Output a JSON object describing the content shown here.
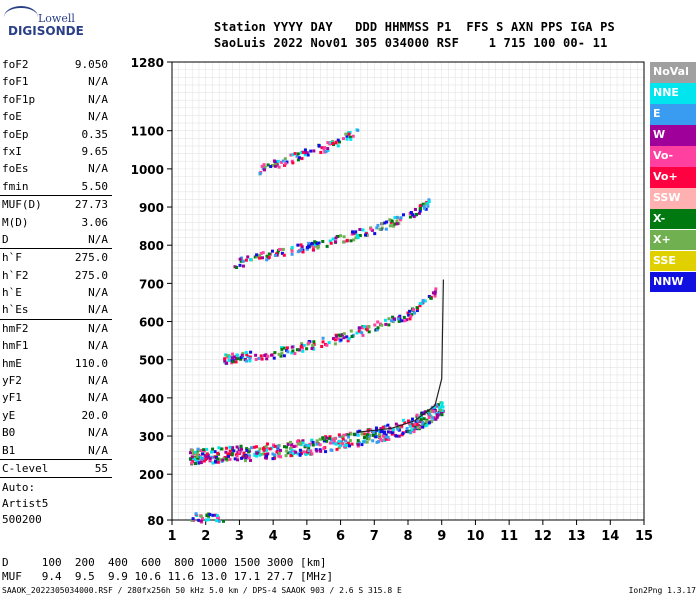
{
  "logo": {
    "top": "Lowell",
    "bottom": "DIGISONDE"
  },
  "header": {
    "line1": "Station YYYY DAY   DDD HHMMSS P1  FFS S AXN PPS IGA PS",
    "line2": "SaoLuis 2022 Nov01 305 034000 RSF    1 715 100 00- 11"
  },
  "params": [
    {
      "name": "foF2",
      "value": "9.050"
    },
    {
      "name": "foF1",
      "value": "N/A"
    },
    {
      "name": "foF1p",
      "value": "N/A"
    },
    {
      "name": "foE",
      "value": "N/A"
    },
    {
      "name": "foEp",
      "value": "0.35"
    },
    {
      "name": "fxI",
      "value": "9.65"
    },
    {
      "name": "foEs",
      "value": "N/A"
    },
    {
      "name": "fmin",
      "value": "5.50"
    },
    {
      "name": "MUF(D)",
      "value": "27.73"
    },
    {
      "name": "M(D)",
      "value": "3.06"
    },
    {
      "name": "D",
      "value": "N/A"
    },
    {
      "name": "h`F",
      "value": "275.0"
    },
    {
      "name": "h`F2",
      "value": "275.0"
    },
    {
      "name": "h`E",
      "value": "N/A"
    },
    {
      "name": "h`Es",
      "value": "N/A"
    },
    {
      "name": "hmF2",
      "value": "N/A"
    },
    {
      "name": "hmF1",
      "value": "N/A"
    },
    {
      "name": "hmE",
      "value": "110.0"
    },
    {
      "name": "yF2",
      "value": "N/A"
    },
    {
      "name": "yF1",
      "value": "N/A"
    },
    {
      "name": "yE",
      "value": "20.0"
    },
    {
      "name": "B0",
      "value": "N/A"
    },
    {
      "name": "B1",
      "value": "N/A"
    },
    {
      "name": "C-level",
      "value": "55"
    }
  ],
  "autoscale": {
    "line1": "Auto:",
    "line2": "Artist5",
    "line3": "500200"
  },
  "legend": [
    {
      "label": "NoVal",
      "color": "#a0a0a0"
    },
    {
      "label": "NNE",
      "color": "#00e5ee"
    },
    {
      "label": "E",
      "color": "#3a9cf0"
    },
    {
      "label": "W",
      "color": "#a0009a"
    },
    {
      "label": "Vo-",
      "color": "#ff40a0"
    },
    {
      "label": "Vo+",
      "color": "#ff0040"
    },
    {
      "label": "SSW",
      "color": "#ffb0b0"
    },
    {
      "label": "X-",
      "color": "#007a10"
    },
    {
      "label": "X+",
      "color": "#70b050"
    },
    {
      "label": "SSE",
      "color": "#e0d000"
    },
    {
      "label": "NNW",
      "color": "#1010e0"
    }
  ],
  "muf_table": {
    "d_line": "D     100  200  400  600  800 1000 1500 3000 [km]",
    "muf_line": "MUF   9.4  9.5  9.9 10.6 11.6 13.0 17.1 27.7 [MHz]"
  },
  "footer": {
    "left": "SAAOK_2022305034000.RSF / 280fx256h 50 kHz 5.0 km / DPS-4 SAAOK 903 / 2.6 S 315.8 E",
    "right": "Ion2Png 1.3.17"
  },
  "chart_data": {
    "type": "scatter",
    "xlim": [
      1,
      15
    ],
    "ylim": [
      80,
      1280
    ],
    "x_ticks": [
      1,
      2,
      3,
      4,
      5,
      6,
      7,
      8,
      9,
      10,
      11,
      12,
      13,
      14,
      15
    ],
    "y_ticks": [
      80,
      200,
      300,
      400,
      500,
      600,
      700,
      800,
      900,
      1000,
      1100,
      1280
    ],
    "grid": true,
    "series": [
      {
        "name": "F2 trace",
        "x": [
          1.5,
          2,
          3,
          4,
          5,
          6,
          7,
          8,
          8.5,
          9.0
        ],
        "y": [
          250,
          252,
          258,
          265,
          275,
          290,
          305,
          330,
          350,
          380
        ]
      },
      {
        "name": "F2 2nd hop",
        "x": [
          2.5,
          3,
          4,
          5,
          6,
          7,
          8,
          8.8
        ],
        "y": [
          505,
          510,
          520,
          540,
          560,
          590,
          620,
          680
        ]
      },
      {
        "name": "F2 3rd hop",
        "x": [
          2.8,
          4,
          5,
          6,
          7,
          8,
          8.6
        ],
        "y": [
          755,
          780,
          800,
          820,
          845,
          880,
          915
        ]
      },
      {
        "name": "F2 4th hop",
        "x": [
          3.5,
          4.5,
          5.5,
          6.5
        ],
        "y": [
          1000,
          1030,
          1060,
          1100
        ]
      },
      {
        "name": "Es",
        "x": [
          1.5,
          2.5
        ],
        "y": [
          90,
          90
        ]
      },
      {
        "name": "Profile",
        "x": [
          6.5,
          7.5,
          8.2,
          8.8,
          9.0,
          9.05
        ],
        "y": [
          310,
          320,
          340,
          380,
          450,
          710
        ]
      }
    ]
  }
}
